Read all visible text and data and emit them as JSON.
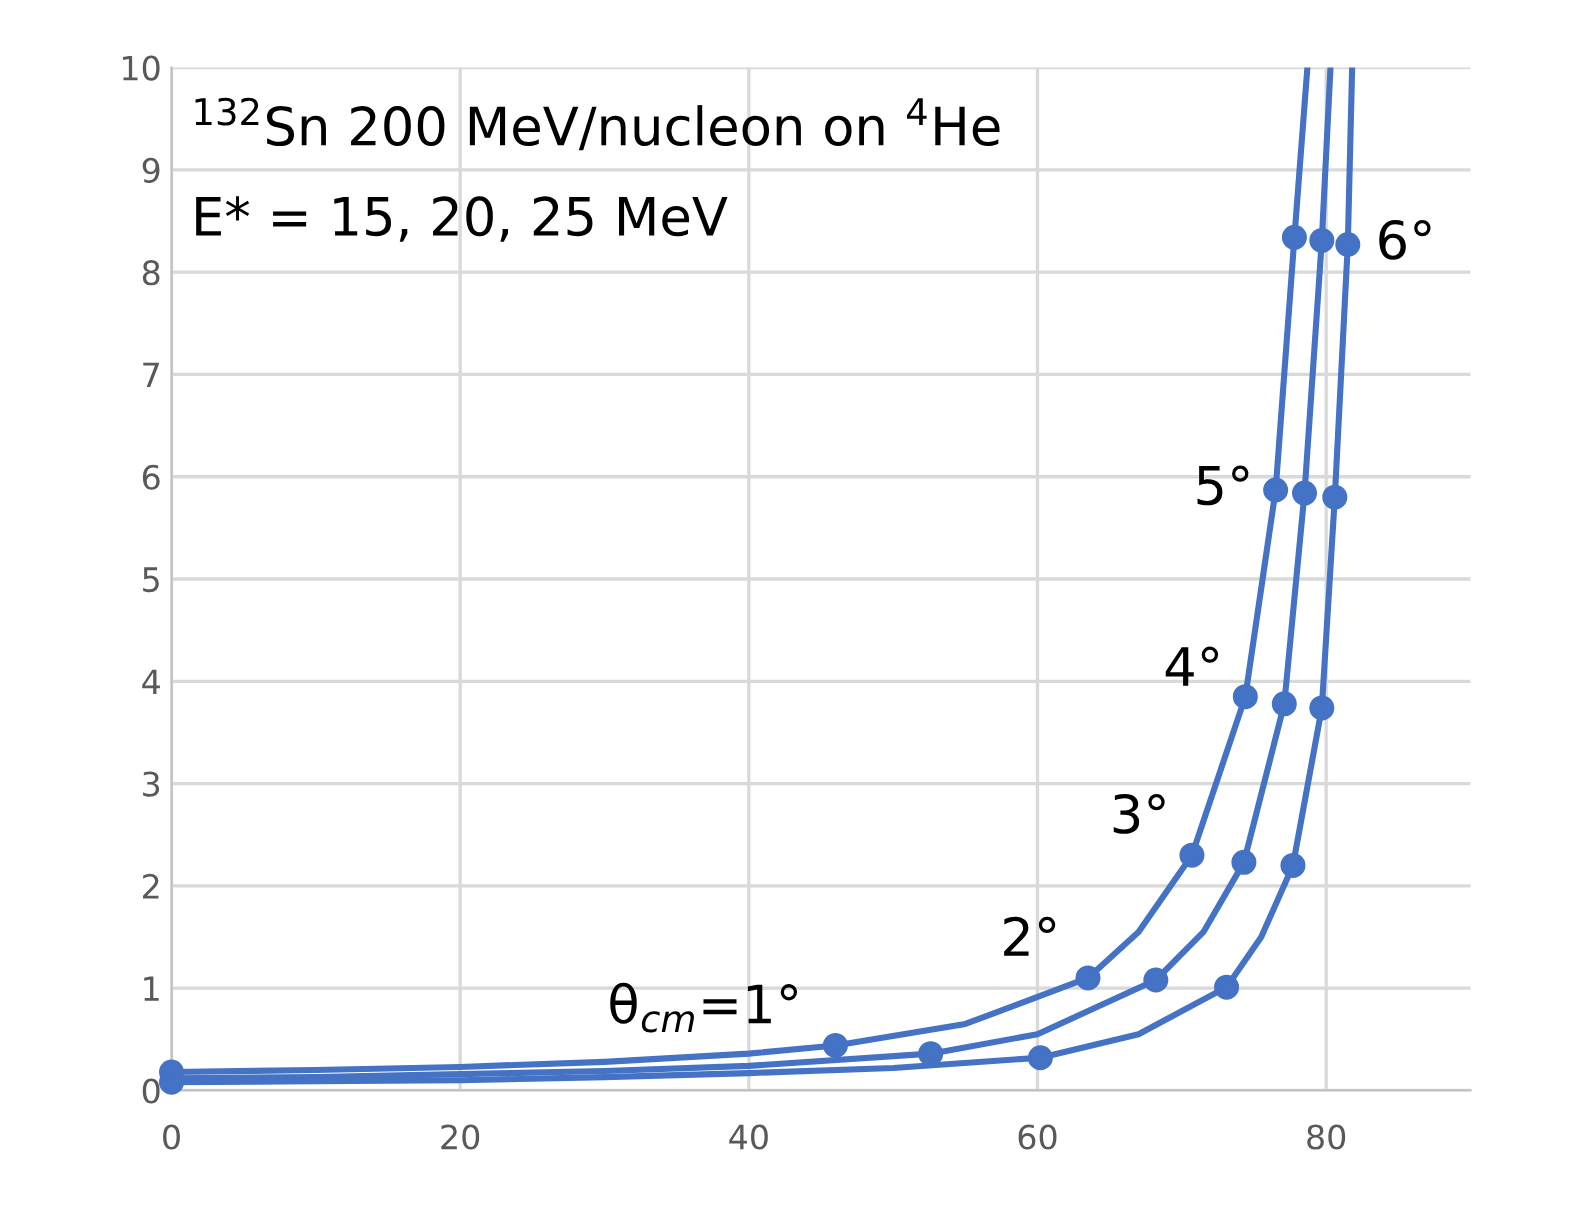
{
  "chart_data": {
    "type": "scatter",
    "annotations": [
      {
        "text": "$^{132}$Sn 200 MeV/nucleon on $^{4}$He"
      },
      {
        "text": "E* = 15, 20, 25 MeV"
      },
      {
        "text": "θ$_{cm}$=1°",
        "x": 46,
        "y": 0.44
      },
      {
        "text": "2°",
        "x": 63.5,
        "y": 1.1
      },
      {
        "text": "3°",
        "x": 70.7,
        "y": 2.3
      },
      {
        "text": "4°",
        "x": 74.4,
        "y": 3.85
      },
      {
        "text": "5°",
        "x": 76.5,
        "y": 5.87
      },
      {
        "text": "6°",
        "x": 81.5,
        "y": 8.27
      }
    ],
    "series": [
      {
        "type": "line",
        "color": "#4472c4",
        "x": [
          0,
          10,
          20,
          30,
          40,
          46,
          55,
          63.5,
          67,
          70.7,
          74.4,
          76.5,
          77.8,
          78.7
        ],
        "values": [
          0.18,
          0.2,
          0.23,
          0.28,
          0.36,
          0.44,
          0.65,
          1.1,
          1.55,
          2.3,
          3.85,
          5.87,
          8.34,
          10
        ]
      },
      {
        "type": "line",
        "color": "#4472c4",
        "x": [
          0,
          10,
          20,
          30,
          40,
          52.6,
          60,
          68.2,
          71.5,
          74.3,
          77.1,
          78.5,
          79.7,
          80.3
        ],
        "values": [
          0.12,
          0.13,
          0.16,
          0.19,
          0.24,
          0.36,
          0.55,
          1.08,
          1.55,
          2.23,
          3.78,
          5.84,
          8.31,
          10
        ]
      },
      {
        "type": "line",
        "color": "#4472c4",
        "x": [
          0,
          10,
          20,
          30,
          40,
          50,
          60.2,
          67,
          73.1,
          75.5,
          77.7,
          79.7,
          80.6,
          81.5,
          81.8
        ],
        "values": [
          0.08,
          0.09,
          0.1,
          0.13,
          0.17,
          0.22,
          0.32,
          0.55,
          1.01,
          1.5,
          2.2,
          3.74,
          5.8,
          8.27,
          10
        ]
      },
      {
        "color": "#4472c4",
        "marker": "circle",
        "x": [
          0,
          46,
          63.5,
          70.7,
          74.4,
          76.5,
          77.8
        ],
        "values": [
          0.18,
          0.44,
          1.1,
          2.3,
          3.85,
          5.87,
          8.34
        ]
      },
      {
        "color": "#4472c4",
        "marker": "circle",
        "x": [
          52.6,
          68.2,
          74.3,
          77.1,
          78.5,
          79.7
        ],
        "values": [
          0.36,
          1.08,
          2.23,
          3.78,
          5.84,
          8.31
        ]
      },
      {
        "color": "#4472c4",
        "marker": "circle",
        "x": [
          0,
          60.2,
          73.1,
          77.7,
          79.7,
          80.6,
          81.5
        ],
        "values": [
          0.08,
          0.32,
          1.01,
          2.2,
          3.74,
          5.8,
          8.27
        ]
      }
    ],
    "line_style": "solid",
    "xlim": [
      0,
      90
    ],
    "xticks": [
      0,
      20,
      40,
      60,
      80
    ],
    "ylim": [
      0,
      10
    ],
    "yticks": [
      0,
      1,
      2,
      3,
      4,
      5,
      6,
      7,
      8,
      9,
      10
    ],
    "grid": true,
    "legend": false
  }
}
